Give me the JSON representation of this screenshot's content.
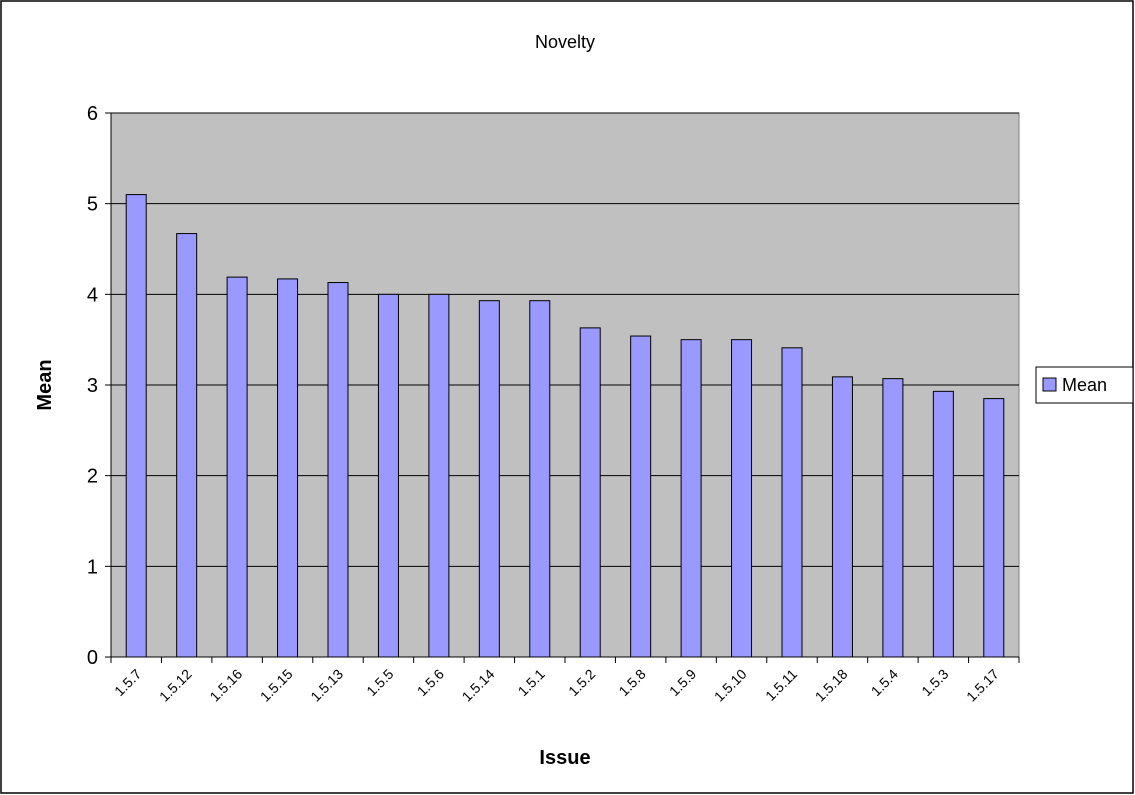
{
  "chart_data": {
    "type": "bar",
    "title": "Novelty",
    "xlabel": "Issue",
    "ylabel": "Mean",
    "categories": [
      "1.5.7",
      "1.5.12",
      "1.5.16",
      "1.5.15",
      "1.5.13",
      "1.5.5",
      "1.5.6",
      "1.5.14",
      "1.5.1",
      "1.5.2",
      "1.5.8",
      "1.5.9",
      "1.5.10",
      "1.5.11",
      "1.5.18",
      "1.5.4",
      "1.5.3",
      "1.5.17"
    ],
    "series": [
      {
        "name": "Mean",
        "values": [
          5.1,
          4.67,
          4.19,
          4.17,
          4.13,
          4.0,
          4.0,
          3.93,
          3.93,
          3.63,
          3.54,
          3.5,
          3.5,
          3.41,
          3.09,
          3.07,
          2.93,
          2.85
        ]
      }
    ],
    "ylim": [
      0,
      6
    ],
    "yticks": [
      0,
      1,
      2,
      3,
      4,
      5,
      6
    ],
    "grid": true,
    "legend_position": "right",
    "colors": {
      "bar_fill": "#9999ff",
      "plot_background": "#c0c0c0",
      "gridline": "#000000",
      "border": "#000000"
    }
  }
}
